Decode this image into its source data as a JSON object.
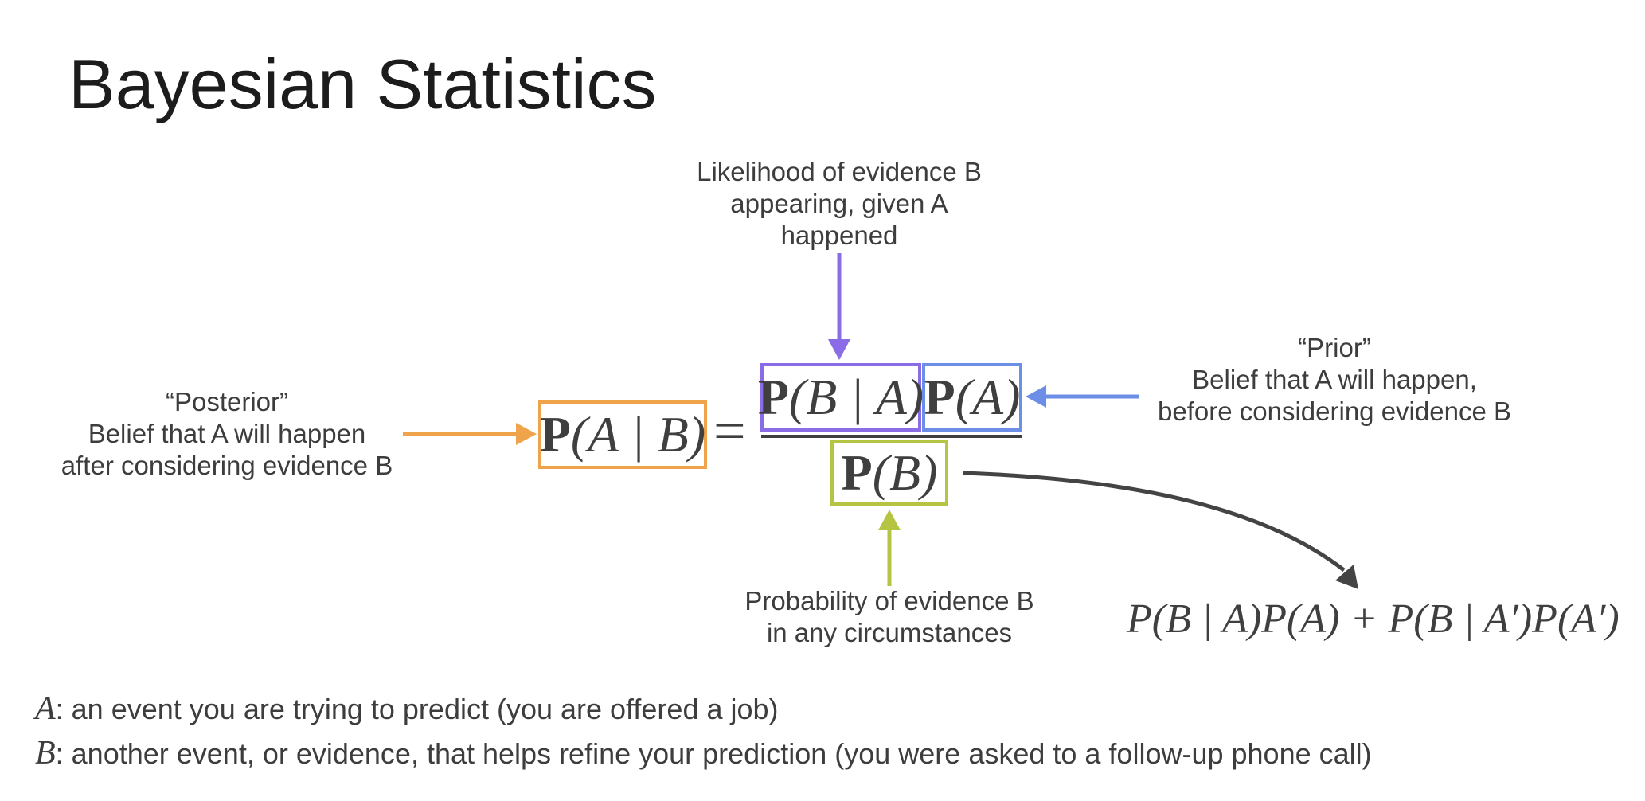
{
  "title": "Bayesian Statistics",
  "colors": {
    "posterior": "#EFA34A",
    "likelihood": "#8A6CE6",
    "prior": "#6C8EE6",
    "evidence": "#B5C443",
    "text": "#3d3d3d",
    "arrow_dark": "#444444"
  },
  "formula": {
    "posterior_bold": "P",
    "posterior_args": "(A | B)",
    "equals": "=",
    "likelihood_bold": "P",
    "likelihood_args": "(B | A)",
    "prior_bold": "P",
    "prior_args": "(A)",
    "evidence_bold": "P",
    "evidence_args": "(B)",
    "expansion": "P(B | A)P(A) + P(B | A′)P(A′)"
  },
  "annotations": {
    "likelihood": [
      "Likelihood of evidence B",
      "appearing, given A",
      "happened"
    ],
    "prior": [
      "“Prior”",
      "Belief that A will happen,",
      "before considering evidence B"
    ],
    "posterior": [
      "“Posterior”",
      "Belief that A will happen",
      "after considering evidence B"
    ],
    "evidence": [
      "Probability of evidence B",
      "in any circumstances"
    ]
  },
  "definitions": [
    {
      "symbol": "A",
      "text": ": an event you are trying to predict (you are offered a job)"
    },
    {
      "symbol": "B",
      "text": ": another event, or evidence, that helps refine your prediction (you were asked to a follow-up phone call)"
    }
  ],
  "icons": [
    "arrow-down-icon",
    "arrow-up-icon",
    "arrow-left-icon",
    "arrow-right-icon",
    "curved-arrow-icon"
  ]
}
